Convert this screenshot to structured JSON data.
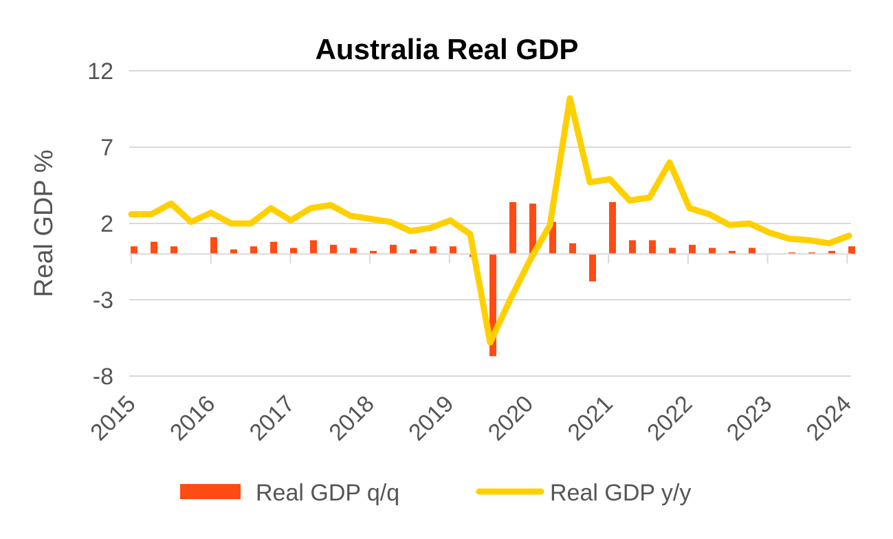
{
  "chart_data": {
    "type": "bar+line",
    "title": "Australia Real GDP",
    "xlabel": "",
    "ylabel": "Real GDP %",
    "ylim": [
      -8,
      12
    ],
    "yticks": [
      "12",
      "7",
      "2",
      "-3",
      "-8"
    ],
    "ytick_values": [
      12,
      7,
      2,
      -3,
      -8
    ],
    "xtick_labels": [
      "2015",
      "2016",
      "2017",
      "2018",
      "2019",
      "2020",
      "2021",
      "2022",
      "2023",
      "2024"
    ],
    "grid": true,
    "legend_position": "bottom",
    "x": [
      "2015Q1",
      "2015Q2",
      "2015Q3",
      "2015Q4",
      "2016Q1",
      "2016Q2",
      "2016Q3",
      "2016Q4",
      "2017Q1",
      "2017Q2",
      "2017Q3",
      "2017Q4",
      "2018Q1",
      "2018Q2",
      "2018Q3",
      "2018Q4",
      "2019Q1",
      "2019Q2",
      "2019Q3",
      "2019Q4",
      "2020Q1",
      "2020Q2",
      "2020Q3",
      "2020Q4",
      "2021Q1",
      "2021Q2",
      "2021Q3",
      "2021Q4",
      "2022Q1",
      "2022Q2",
      "2022Q3",
      "2022Q4",
      "2023Q1",
      "2023Q2",
      "2023Q3",
      "2023Q4",
      "2024Q1"
    ],
    "series": [
      {
        "name": "Real GDP q/q",
        "type": "bar",
        "color": "#FF4B14",
        "values": [
          0.5,
          0.8,
          0.5,
          0.0,
          1.1,
          0.3,
          0.5,
          0.8,
          0.4,
          0.9,
          0.6,
          0.4,
          0.2,
          0.6,
          0.3,
          0.5,
          0.5,
          -0.2,
          -6.7,
          3.4,
          3.3,
          2.1,
          0.7,
          -1.8,
          3.4,
          0.9,
          0.9,
          0.4,
          0.6,
          0.4,
          0.2,
          0.4,
          0.0,
          0.1,
          0.1,
          0.2,
          0.5
        ]
      },
      {
        "name": "Real GDP y/y",
        "type": "line",
        "color": "#FFD000",
        "values": [
          2.6,
          2.6,
          3.3,
          2.1,
          2.7,
          2.0,
          2.0,
          3.0,
          2.2,
          3.0,
          3.2,
          2.5,
          2.3,
          2.1,
          1.5,
          1.7,
          2.2,
          1.3,
          -5.8,
          -3.0,
          -0.4,
          1.9,
          10.2,
          4.7,
          4.9,
          3.5,
          3.7,
          6.0,
          3.0,
          2.6,
          1.9,
          2.0,
          1.4,
          1.0,
          0.9,
          0.7,
          1.2
        ]
      }
    ]
  }
}
